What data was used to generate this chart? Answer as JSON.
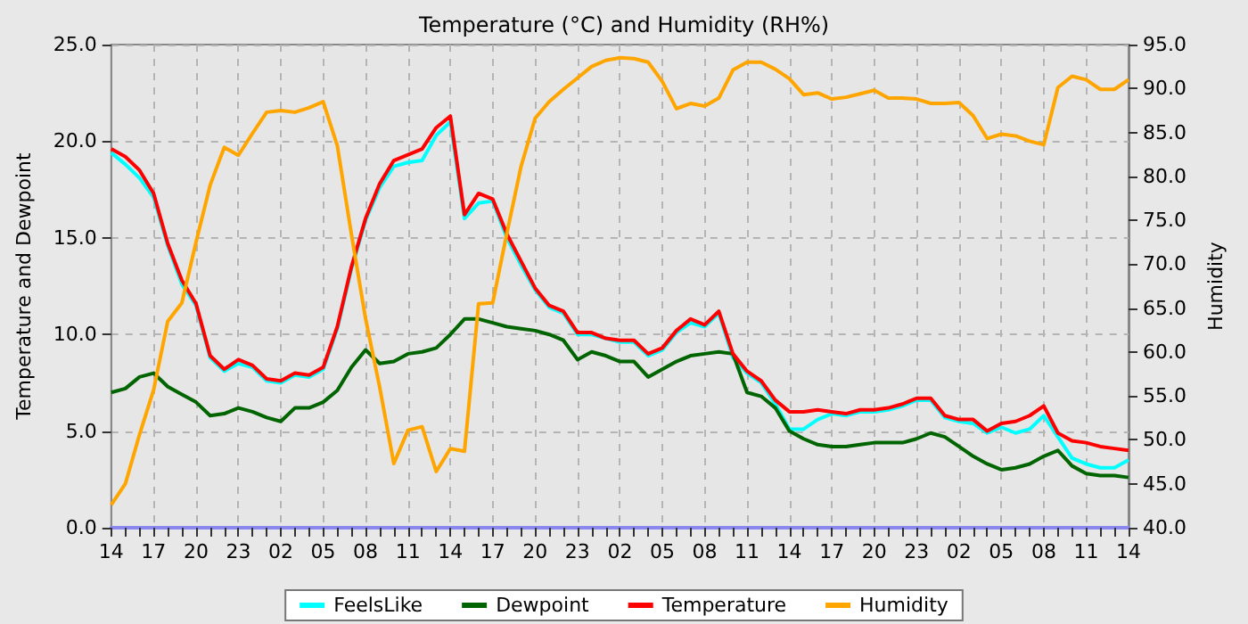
{
  "chart_data": {
    "type": "line",
    "title": "Temperature (°C) and Humidity (RH%)",
    "ylabel": "Temperature and Dewpoint",
    "y2label": "Humidity",
    "categories": [
      "14",
      null,
      null,
      "17",
      null,
      null,
      "20",
      null,
      null,
      "23",
      null,
      null,
      "02",
      null,
      null,
      "05",
      null,
      null,
      "08",
      null,
      null,
      "11",
      null,
      null,
      "14",
      null,
      null,
      "17",
      null,
      null,
      "20",
      null,
      null,
      "23",
      null,
      null,
      "02",
      null,
      null,
      "05",
      null,
      null,
      "08",
      null,
      null,
      "11",
      null,
      null,
      "14",
      null,
      null,
      "17",
      null,
      null,
      "20",
      null,
      null,
      "23",
      null,
      null,
      "02",
      null,
      null,
      "05",
      null,
      null,
      "08",
      null,
      null,
      "11",
      null,
      null,
      "14"
    ],
    "ylim": [
      0,
      25
    ],
    "yticks": [
      {
        "value": 0,
        "label": "0.0"
      },
      {
        "value": 5,
        "label": "5.0"
      },
      {
        "value": 10,
        "label": "10.0"
      },
      {
        "value": 15,
        "label": "15.0"
      },
      {
        "value": 20,
        "label": "20.0"
      },
      {
        "value": 25,
        "label": "25.0"
      }
    ],
    "y2lim": [
      40,
      95
    ],
    "y2ticks": [
      {
        "value": 40,
        "label": "40.0"
      },
      {
        "value": 45,
        "label": "45.0"
      },
      {
        "value": 50,
        "label": "50.0"
      },
      {
        "value": 55,
        "label": "55.0"
      },
      {
        "value": 60,
        "label": "60.0"
      },
      {
        "value": 65,
        "label": "65.0"
      },
      {
        "value": 70,
        "label": "70.0"
      },
      {
        "value": 75,
        "label": "75.0"
      },
      {
        "value": 80,
        "label": "80.0"
      },
      {
        "value": 85,
        "label": "85.0"
      },
      {
        "value": 90,
        "label": "90.0"
      },
      {
        "value": 95,
        "label": "95.0"
      }
    ],
    "grid": true,
    "legend": "bottom",
    "marker": "none",
    "line_style": "solid",
    "series": [
      {
        "name": "FeelsLike",
        "color": "#00ffff",
        "values": [
          19.4,
          18.8,
          18.1,
          17.1,
          14.6,
          12.6,
          11.5,
          8.8,
          8.1,
          8.5,
          8.3,
          7.6,
          7.5,
          7.9,
          7.8,
          8.2,
          10.3,
          13.4,
          15.9,
          17.6,
          18.7,
          18.9,
          19.0,
          20.3,
          21.0,
          16.0,
          16.8,
          16.9,
          15.0,
          13.6,
          12.3,
          11.4,
          11.1,
          10.0,
          10.0,
          9.8,
          9.6,
          9.6,
          8.9,
          9.2,
          10.1,
          10.6,
          10.4,
          11.1,
          8.8,
          8.0,
          7.5,
          6.4,
          5.1,
          5.1,
          5.6,
          5.9,
          5.8,
          6.0,
          6.0,
          6.1,
          6.3,
          6.6,
          6.6,
          5.7,
          5.5,
          5.4,
          4.9,
          5.2,
          4.9,
          5.1,
          5.8,
          4.7,
          3.6,
          3.3,
          3.1,
          3.1,
          3.5
        ]
      },
      {
        "name": "Dewpoint",
        "color": "#006400",
        "values": [
          7.0,
          7.2,
          7.8,
          8.0,
          7.3,
          6.9,
          6.5,
          5.8,
          5.9,
          6.2,
          6.0,
          5.7,
          5.5,
          6.2,
          6.2,
          6.5,
          7.1,
          8.3,
          9.2,
          8.5,
          8.6,
          9.0,
          9.1,
          9.3,
          10.0,
          10.8,
          10.8,
          10.6,
          10.4,
          10.3,
          10.2,
          10.0,
          9.7,
          8.7,
          9.1,
          8.9,
          8.6,
          8.6,
          7.8,
          8.2,
          8.6,
          8.9,
          9.0,
          9.1,
          9.0,
          7.0,
          6.8,
          6.2,
          5.0,
          4.6,
          4.3,
          4.2,
          4.2,
          4.3,
          4.4,
          4.4,
          4.4,
          4.6,
          4.9,
          4.7,
          4.2,
          3.7,
          3.3,
          3.0,
          3.1,
          3.3,
          3.7,
          4.0,
          3.2,
          2.8,
          2.7,
          2.7,
          2.6
        ]
      },
      {
        "name": "Temperature",
        "color": "#ff0000",
        "values": [
          19.6,
          19.2,
          18.5,
          17.3,
          14.7,
          12.8,
          11.6,
          8.9,
          8.2,
          8.7,
          8.4,
          7.7,
          7.6,
          8.0,
          7.9,
          8.3,
          10.4,
          13.5,
          16.0,
          17.8,
          19.0,
          19.3,
          19.6,
          20.7,
          21.3,
          16.2,
          17.3,
          17.0,
          15.2,
          13.8,
          12.4,
          11.5,
          11.2,
          10.1,
          10.1,
          9.8,
          9.7,
          9.7,
          9.0,
          9.3,
          10.2,
          10.8,
          10.5,
          11.2,
          9.0,
          8.1,
          7.6,
          6.6,
          6.0,
          6.0,
          6.1,
          6.0,
          5.9,
          6.1,
          6.1,
          6.2,
          6.4,
          6.7,
          6.7,
          5.8,
          5.6,
          5.6,
          5.0,
          5.4,
          5.5,
          5.8,
          6.3,
          4.9,
          4.5,
          4.4,
          4.2,
          4.1,
          4.0
        ]
      },
      {
        "name": "Humidity",
        "color": "#ffa500",
        "axis": "y2",
        "values": [
          42.6,
          45.0,
          50.6,
          55.7,
          63.5,
          65.6,
          72.5,
          79.0,
          83.3,
          82.4,
          84.9,
          87.3,
          87.5,
          87.3,
          87.8,
          88.5,
          83.5,
          73.4,
          63.8,
          56.0,
          47.3,
          51.1,
          51.5,
          46.4,
          49.0,
          48.7,
          65.5,
          65.6,
          73.5,
          81.1,
          86.6,
          88.5,
          89.9,
          91.2,
          92.5,
          93.2,
          93.5,
          93.4,
          93.0,
          90.8,
          87.7,
          88.3,
          88.0,
          88.9,
          92.1,
          93.0,
          93.0,
          92.2,
          91.1,
          89.3,
          89.5,
          88.8,
          89.0,
          89.4,
          89.8,
          88.9,
          88.9,
          88.8,
          88.3,
          88.3,
          88.4,
          86.9,
          84.3,
          84.8,
          84.6,
          84.0,
          83.6,
          90.1,
          91.4,
          91.0,
          89.9,
          89.9,
          91.0
        ]
      }
    ]
  }
}
